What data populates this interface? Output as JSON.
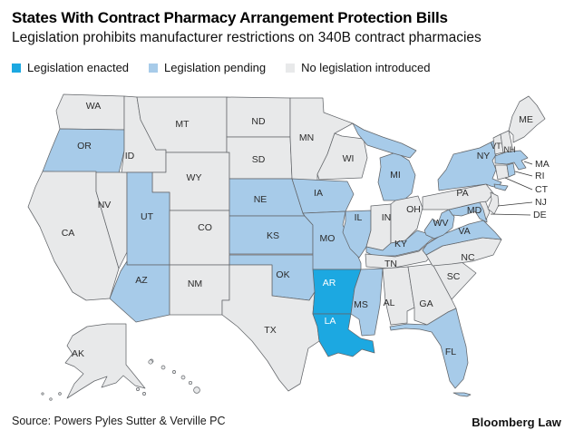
{
  "title": "States With Contract Pharmacy Arrangement Protection Bills",
  "subtitle": "Legislation prohibits manufacturer restrictions on 340B contract pharmacies",
  "legend": {
    "items": [
      {
        "label": "Legislation enacted",
        "status": "enacted"
      },
      {
        "label": "Legislation pending",
        "status": "pending"
      },
      {
        "label": "No legislation introduced",
        "status": "none"
      }
    ]
  },
  "colors": {
    "enacted": "#1CA8E1",
    "pending": "#A7CBE9",
    "none": "#E8E9EA",
    "border": "#63666A",
    "label_dark": "#2B2B2B",
    "label_light": "#FFFFFF"
  },
  "source": "Source: Powers Pyles Sutter & Verville PC",
  "brand": "Bloomberg Law",
  "states": [
    {
      "code": "WA",
      "status": "none"
    },
    {
      "code": "OR",
      "status": "pending"
    },
    {
      "code": "CA",
      "status": "none"
    },
    {
      "code": "NV",
      "status": "none"
    },
    {
      "code": "ID",
      "status": "none"
    },
    {
      "code": "MT",
      "status": "none"
    },
    {
      "code": "WY",
      "status": "none"
    },
    {
      "code": "UT",
      "status": "pending"
    },
    {
      "code": "CO",
      "status": "none"
    },
    {
      "code": "AZ",
      "status": "pending"
    },
    {
      "code": "NM",
      "status": "none"
    },
    {
      "code": "ND",
      "status": "none"
    },
    {
      "code": "SD",
      "status": "none"
    },
    {
      "code": "NE",
      "status": "pending"
    },
    {
      "code": "KS",
      "status": "pending"
    },
    {
      "code": "OK",
      "status": "pending"
    },
    {
      "code": "TX",
      "status": "none"
    },
    {
      "code": "MN",
      "status": "none"
    },
    {
      "code": "IA",
      "status": "pending"
    },
    {
      "code": "MO",
      "status": "pending"
    },
    {
      "code": "AR",
      "status": "enacted"
    },
    {
      "code": "LA",
      "status": "enacted"
    },
    {
      "code": "WI",
      "status": "none"
    },
    {
      "code": "IL",
      "status": "pending"
    },
    {
      "code": "MS",
      "status": "pending"
    },
    {
      "code": "MI",
      "status": "pending"
    },
    {
      "code": "IN",
      "status": "none"
    },
    {
      "code": "OH",
      "status": "none"
    },
    {
      "code": "KY",
      "status": "pending"
    },
    {
      "code": "TN",
      "status": "none"
    },
    {
      "code": "AL",
      "status": "none"
    },
    {
      "code": "GA",
      "status": "none"
    },
    {
      "code": "FL",
      "status": "pending"
    },
    {
      "code": "SC",
      "status": "none"
    },
    {
      "code": "NC",
      "status": "none"
    },
    {
      "code": "VA",
      "status": "pending"
    },
    {
      "code": "WV",
      "status": "pending"
    },
    {
      "code": "MD",
      "status": "pending"
    },
    {
      "code": "DE",
      "status": "none"
    },
    {
      "code": "PA",
      "status": "none"
    },
    {
      "code": "NJ",
      "status": "none"
    },
    {
      "code": "NY",
      "status": "pending"
    },
    {
      "code": "CT",
      "status": "none"
    },
    {
      "code": "RI",
      "status": "pending"
    },
    {
      "code": "MA",
      "status": "pending"
    },
    {
      "code": "VT",
      "status": "none"
    },
    {
      "code": "NH",
      "status": "none"
    },
    {
      "code": "ME",
      "status": "none"
    },
    {
      "code": "AK",
      "status": "none"
    },
    {
      "code": "HI",
      "status": "none"
    }
  ],
  "chart_data": {
    "type": "heatmap",
    "subtype": "us-choropleth",
    "title": "States With Contract Pharmacy Arrangement Protection Bills",
    "subtitle": "Legislation prohibits manufacturer restrictions on 340B contract pharmacies",
    "legend_entries": [
      "Legislation enacted",
      "Legislation pending",
      "No legislation introduced"
    ],
    "legend_position": "top",
    "categories": [
      "enacted",
      "pending",
      "none"
    ],
    "enacted": [
      "AR",
      "LA"
    ],
    "pending": [
      "OR",
      "UT",
      "AZ",
      "NE",
      "KS",
      "OK",
      "MO",
      "IA",
      "IL",
      "MI",
      "MS",
      "KY",
      "WV",
      "VA",
      "MD",
      "NY",
      "MA",
      "RI",
      "FL"
    ],
    "no_legislation": [
      "WA",
      "ID",
      "MT",
      "ND",
      "SD",
      "WY",
      "NV",
      "CA",
      "CO",
      "NM",
      "TX",
      "MN",
      "WI",
      "IN",
      "OH",
      "TN",
      "NC",
      "SC",
      "GA",
      "AL",
      "PA",
      "NJ",
      "DE",
      "CT",
      "VT",
      "NH",
      "ME",
      "AK",
      "HI"
    ]
  }
}
